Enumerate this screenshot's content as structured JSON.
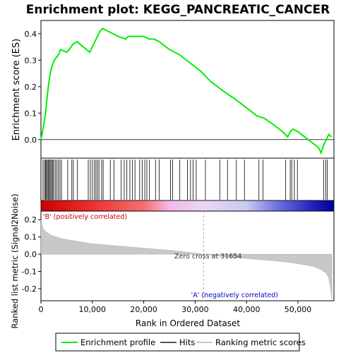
{
  "chart_data": {
    "type": "line",
    "title": "Enrichment plot: KEGG_PANCREATIC_CANCER",
    "xlabel": "Rank in Ordered Dataset",
    "es_panel": {
      "ylabel": "Enrichment score (ES)",
      "ylim": [
        -0.07,
        0.45
      ],
      "yticks": [
        "0.0",
        "0.1",
        "0.2",
        "0.3",
        "0.4"
      ],
      "ytick_values": [
        0.0,
        0.1,
        0.2,
        0.3,
        0.4
      ],
      "series_name": "Enrichment profile",
      "color": "#00ee00",
      "x": [
        0,
        500,
        900,
        1200,
        1500,
        1800,
        2200,
        2600,
        3000,
        3400,
        3800,
        5000,
        5500,
        6200,
        7000,
        9500,
        10000,
        10500,
        11000,
        11500,
        12000,
        13000,
        14000,
        15000,
        16500,
        17000,
        18000,
        19000,
        20000,
        21000,
        22000,
        23000,
        25000,
        27000,
        29000,
        31000,
        33000,
        35000,
        36500,
        38000,
        40000,
        42000,
        43500,
        45000,
        47000,
        48000,
        48500,
        49000,
        50000,
        52000,
        54000,
        54500,
        55000,
        55500,
        56000,
        56500
      ],
      "y": [
        0.0,
        0.05,
        0.1,
        0.16,
        0.21,
        0.25,
        0.28,
        0.3,
        0.31,
        0.32,
        0.34,
        0.33,
        0.34,
        0.36,
        0.37,
        0.33,
        0.35,
        0.37,
        0.39,
        0.41,
        0.42,
        0.41,
        0.4,
        0.39,
        0.38,
        0.39,
        0.39,
        0.39,
        0.39,
        0.38,
        0.38,
        0.37,
        0.34,
        0.32,
        0.29,
        0.26,
        0.22,
        0.19,
        0.17,
        0.15,
        0.12,
        0.09,
        0.08,
        0.06,
        0.03,
        0.01,
        0.03,
        0.04,
        0.03,
        0.0,
        -0.03,
        -0.05,
        -0.02,
        0.0,
        0.02,
        0.01
      ]
    },
    "hits_panel": {
      "series_name": "Hits",
      "hit_ranks": [
        400,
        700,
        900,
        1000,
        1200,
        1400,
        1500,
        1700,
        1900,
        2100,
        2300,
        2500,
        2800,
        3100,
        3400,
        3700,
        4000,
        5200,
        6000,
        6300,
        7100,
        9200,
        9600,
        10000,
        10400,
        10700,
        11000,
        11300,
        11800,
        12100,
        13500,
        14200,
        15600,
        16200,
        16700,
        17300,
        17800,
        18300,
        19200,
        19700,
        20200,
        20600,
        21100,
        22300,
        23000,
        25200,
        25600,
        27000,
        28500,
        29100,
        29600,
        30200,
        32000,
        34800,
        36300,
        38000,
        39600,
        42400,
        43200,
        47600,
        48500,
        48800,
        49300,
        49900,
        55000,
        55400,
        55700
      ]
    },
    "ranked_panel": {
      "ylabel": "Ranked list metric (Signal2Noise)",
      "ylim": [
        -0.27,
        0.25
      ],
      "yticks": [
        "0.2",
        "0.1",
        "0.0",
        "-0.1",
        "-0.2"
      ],
      "ytick_values": [
        0.2,
        0.1,
        0.0,
        -0.1,
        -0.2
      ],
      "series_name": "Ranking metric scores",
      "color": "#c8c8c8",
      "x": [
        0,
        300,
        600,
        1000,
        1500,
        2000,
        3000,
        4000,
        6000,
        8000,
        10000,
        14000,
        18000,
        22000,
        26000,
        29000,
        31654,
        34000,
        38000,
        42000,
        46000,
        49000,
        51000,
        53000,
        54500,
        55500,
        56000,
        56300,
        56600
      ],
      "y": [
        0.2,
        0.16,
        0.14,
        0.13,
        0.12,
        0.11,
        0.1,
        0.09,
        0.08,
        0.07,
        0.06,
        0.05,
        0.04,
        0.03,
        0.02,
        0.01,
        0.0,
        -0.01,
        -0.02,
        -0.03,
        -0.04,
        -0.05,
        -0.06,
        -0.07,
        -0.09,
        -0.11,
        -0.14,
        -0.19,
        -0.26
      ],
      "pos_label": "'B' (positively correlated)",
      "neg_label": "'A' (negatively correlated)",
      "zero_cross_label": "Zero cross at 31654",
      "zero_cross": 31654
    },
    "xlim": [
      0,
      57000
    ],
    "xticks": [
      "0",
      "10,000",
      "20,000",
      "30,000",
      "40,000",
      "50,000"
    ],
    "xtick_values": [
      0,
      10000,
      20000,
      30000,
      40000,
      50000
    ],
    "heat_bar": {
      "stops": [
        {
          "at": 0,
          "color": "#cc0000"
        },
        {
          "at": 10000,
          "color": "#ee3030"
        },
        {
          "at": 20000,
          "color": "#f47070"
        },
        {
          "at": 25000,
          "color": "#f5b8e8"
        },
        {
          "at": 32000,
          "color": "#e8d8f5"
        },
        {
          "at": 40000,
          "color": "#c8c8f5"
        },
        {
          "at": 46000,
          "color": "#7070e0"
        },
        {
          "at": 53000,
          "color": "#2020c0"
        },
        {
          "at": 56600,
          "color": "#0000a0"
        }
      ]
    },
    "legend": {
      "placement": "bottom",
      "items": [
        {
          "label": "Enrichment profile",
          "color": "#00ee00"
        },
        {
          "label": "Hits",
          "color": "#555555"
        },
        {
          "label": "Ranking metric scores",
          "color": "#c8c8c8"
        }
      ]
    }
  }
}
